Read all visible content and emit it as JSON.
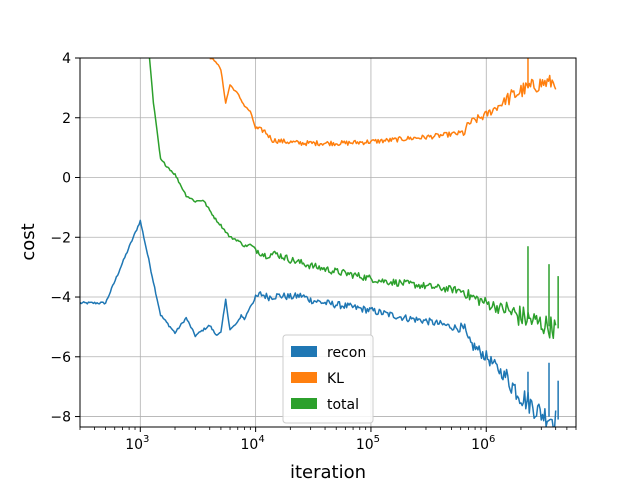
{
  "chart_data": {
    "type": "line",
    "xscale": "log",
    "xlabel": "iteration",
    "ylabel": "cost",
    "xlim": [
      300,
      6000000
    ],
    "ylim": [
      -8.35,
      4.0
    ],
    "xticks": [
      {
        "value": 1000,
        "base": "10",
        "exp": "3"
      },
      {
        "value": 10000,
        "base": "10",
        "exp": "4"
      },
      {
        "value": 100000,
        "base": "10",
        "exp": "5"
      },
      {
        "value": 1000000,
        "base": "10",
        "exp": "6"
      }
    ],
    "yticks": [
      4,
      2,
      0,
      -2,
      -4,
      -6,
      -8
    ],
    "ytick_labels": [
      "4",
      "2",
      "0",
      "−2",
      "−4",
      "−6",
      "−8"
    ],
    "grid": true,
    "legend_position": "lower center",
    "series": [
      {
        "name": "recon",
        "color": "#1f77b4",
        "points": [
          [
            300,
            -4.2
          ],
          [
            500,
            -4.2
          ],
          [
            1000,
            -1.45
          ],
          [
            1500,
            -4.6
          ],
          [
            2000,
            -5.2
          ],
          [
            2500,
            -4.7
          ],
          [
            3000,
            -5.3
          ],
          [
            3500,
            -5.1
          ],
          [
            4000,
            -4.95
          ],
          [
            4500,
            -5.25
          ],
          [
            5000,
            -5.2
          ],
          [
            5500,
            -4.1
          ],
          [
            6000,
            -5.1
          ],
          [
            7000,
            -4.85
          ],
          [
            7500,
            -4.6
          ],
          [
            8000,
            -4.75
          ],
          [
            9000,
            -4.3
          ],
          [
            10000,
            -4.05
          ],
          [
            11000,
            -3.9
          ],
          [
            13000,
            -4.0
          ],
          [
            16000,
            -3.95
          ],
          [
            20000,
            -4.0
          ],
          [
            25000,
            -3.95
          ],
          [
            30000,
            -4.1
          ],
          [
            40000,
            -4.2
          ],
          [
            60000,
            -4.3
          ],
          [
            100000,
            -4.45
          ],
          [
            150000,
            -4.6
          ],
          [
            200000,
            -4.7
          ],
          [
            300000,
            -4.8
          ],
          [
            450000,
            -4.95
          ],
          [
            650000,
            -5.1
          ],
          [
            700000,
            -5.5
          ],
          [
            1000000,
            -6.0
          ],
          [
            1500000,
            -6.7
          ],
          [
            2000000,
            -7.3
          ],
          [
            3000000,
            -7.9
          ],
          [
            4000000,
            -8.1
          ]
        ],
        "spikes": [
          [
            2300000,
            -6.5
          ],
          [
            3500000,
            -6.2
          ],
          [
            4200000,
            -6.8
          ]
        ]
      },
      {
        "name": "KL",
        "color": "#ff7f0e",
        "points": [
          [
            4000,
            4.0
          ],
          [
            4500,
            3.9
          ],
          [
            5000,
            3.6
          ],
          [
            5500,
            2.5
          ],
          [
            6000,
            3.1
          ],
          [
            7000,
            2.8
          ],
          [
            8000,
            2.4
          ],
          [
            9000,
            2.2
          ],
          [
            10000,
            1.65
          ],
          [
            12000,
            1.55
          ],
          [
            14000,
            1.25
          ],
          [
            18000,
            1.2
          ],
          [
            25000,
            1.15
          ],
          [
            40000,
            1.15
          ],
          [
            60000,
            1.15
          ],
          [
            100000,
            1.2
          ],
          [
            150000,
            1.25
          ],
          [
            200000,
            1.3
          ],
          [
            300000,
            1.35
          ],
          [
            500000,
            1.45
          ],
          [
            650000,
            1.5
          ],
          [
            700000,
            1.8
          ],
          [
            1000000,
            2.1
          ],
          [
            1500000,
            2.6
          ],
          [
            2000000,
            2.9
          ],
          [
            3000000,
            3.15
          ],
          [
            4000000,
            3.2
          ]
        ],
        "spikes": [
          [
            2300000,
            4.0
          ]
        ]
      },
      {
        "name": "total",
        "color": "#2ca02c",
        "points": [
          [
            1200,
            4.0
          ],
          [
            1300,
            2.5
          ],
          [
            1500,
            0.6
          ],
          [
            2000,
            0.1
          ],
          [
            2500,
            -0.6
          ],
          [
            3000,
            -0.8
          ],
          [
            3500,
            -0.75
          ],
          [
            4000,
            -1.1
          ],
          [
            4500,
            -1.4
          ],
          [
            5000,
            -1.6
          ],
          [
            6000,
            -2.0
          ],
          [
            7000,
            -2.1
          ],
          [
            8000,
            -2.3
          ],
          [
            9000,
            -2.25
          ],
          [
            10000,
            -2.4
          ],
          [
            12000,
            -2.6
          ],
          [
            15000,
            -2.55
          ],
          [
            20000,
            -2.75
          ],
          [
            30000,
            -2.95
          ],
          [
            50000,
            -3.15
          ],
          [
            80000,
            -3.3
          ],
          [
            120000,
            -3.45
          ],
          [
            200000,
            -3.55
          ],
          [
            400000,
            -3.7
          ],
          [
            650000,
            -3.8
          ],
          [
            700000,
            -3.95
          ],
          [
            1000000,
            -4.2
          ],
          [
            1500000,
            -4.45
          ],
          [
            2000000,
            -4.65
          ],
          [
            3000000,
            -4.9
          ],
          [
            4000000,
            -5.05
          ]
        ],
        "spikes": [
          [
            2300000,
            -2.3
          ],
          [
            3500000,
            -2.9
          ],
          [
            4200000,
            -3.3
          ]
        ]
      }
    ]
  }
}
